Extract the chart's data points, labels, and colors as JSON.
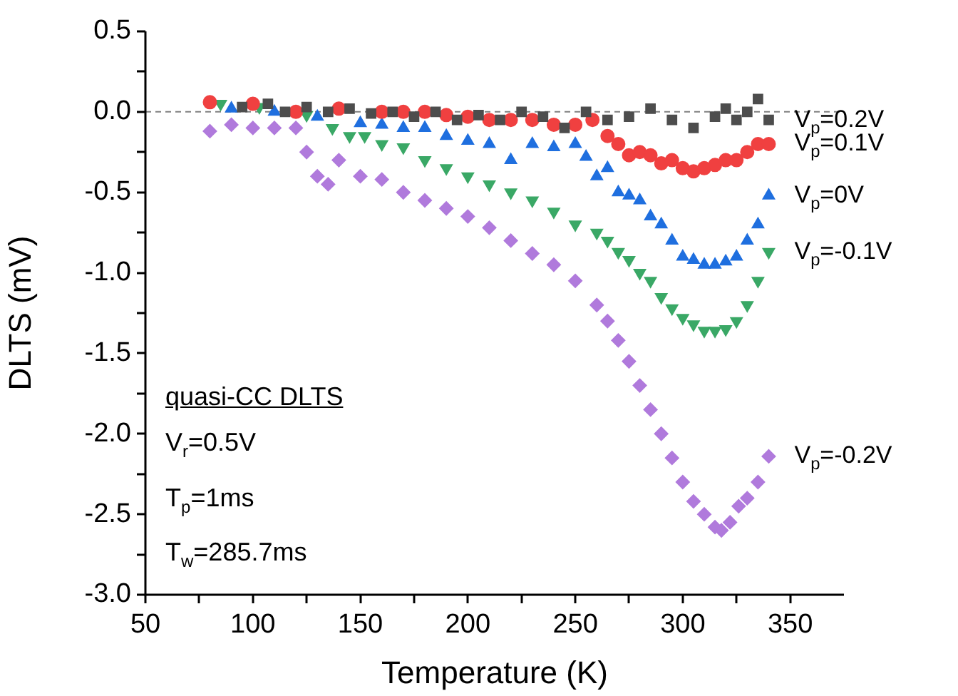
{
  "chart_data": {
    "type": "scatter",
    "xlabel": "Temperature (K)",
    "ylabel": "DLTS (mV)",
    "xlim": [
      50,
      375
    ],
    "xticks": [
      50,
      {
        "value": 75,
        "label": null
      },
      100,
      {
        "value": 125,
        "label": null
      },
      150,
      {
        "value": 175,
        "label": null
      },
      200,
      {
        "value": 225,
        "label": null
      },
      250,
      {
        "value": 275,
        "label": null
      },
      300,
      {
        "value": 325,
        "label": null
      },
      350
    ],
    "ylim": [
      -3.0,
      0.5
    ],
    "yticks": [
      {
        "value": 0.5,
        "label": "0.5"
      },
      {
        "value": 0.25,
        "label": null
      },
      {
        "value": 0,
        "label": "0.0"
      },
      {
        "value": -0.25,
        "label": null
      },
      {
        "value": -0.5,
        "label": "-0.5"
      },
      {
        "value": -0.75,
        "label": null
      },
      {
        "value": -1,
        "label": "-1.0"
      },
      {
        "value": -1.25,
        "label": null
      },
      {
        "value": -1.5,
        "label": "-1.5"
      },
      {
        "value": -1.75,
        "label": null
      },
      {
        "value": -2,
        "label": "-2.0"
      },
      {
        "value": -2.25,
        "label": null
      },
      {
        "value": -2.5,
        "label": "-2.5"
      },
      {
        "value": -2.75,
        "label": null
      },
      {
        "value": -3,
        "label": "-3.0"
      }
    ],
    "grid": false,
    "legend": false,
    "ref_lines": [
      {
        "axis": "y",
        "value": 0,
        "color": "#808080",
        "line_style": "dashed"
      }
    ],
    "annotations": [
      "quasi-CC DLTS",
      "V$_{r}$=0.5V",
      "T$_{p}$=1ms",
      "T$_{w}$=285.7ms"
    ],
    "series": [
      {
        "name": "V$_{p}$=0.2V",
        "color": "#4d4d4d",
        "marker": "square",
        "x": [
          95,
          107,
          115,
          125,
          135,
          145,
          155,
          165,
          175,
          185,
          195,
          205,
          215,
          225,
          235,
          245,
          255,
          265,
          275,
          285,
          295,
          305,
          315,
          320,
          325,
          330,
          335,
          340
        ],
        "values": [
          0.03,
          0.05,
          0.0,
          0.03,
          0.0,
          0.02,
          -0.01,
          0.0,
          -0.03,
          0.0,
          -0.05,
          -0.02,
          -0.05,
          0.0,
          -0.03,
          -0.1,
          0.0,
          -0.05,
          -0.03,
          0.02,
          -0.05,
          -0.1,
          -0.03,
          0.02,
          -0.05,
          0.0,
          0.08,
          -0.05
        ]
      },
      {
        "name": "V$_{p}$=0.1V",
        "color": "#f04040",
        "marker": "circle",
        "x": [
          80,
          100,
          120,
          140,
          160,
          170,
          180,
          190,
          200,
          210,
          220,
          230,
          240,
          250,
          258,
          265,
          270,
          275,
          280,
          285,
          290,
          295,
          300,
          305,
          310,
          315,
          320,
          325,
          330,
          335,
          340
        ],
        "values": [
          0.06,
          0.05,
          0.0,
          0.02,
          0.0,
          0.0,
          0.0,
          -0.02,
          -0.03,
          -0.05,
          -0.05,
          -0.05,
          -0.08,
          -0.08,
          -0.05,
          -0.15,
          -0.2,
          -0.27,
          -0.25,
          -0.27,
          -0.32,
          -0.3,
          -0.35,
          -0.37,
          -0.35,
          -0.33,
          -0.3,
          -0.3,
          -0.25,
          -0.2,
          -0.2
        ]
      },
      {
        "name": "V$_{p}$=0V",
        "color": "#1f6fdf",
        "marker": "triangle",
        "x": [
          90,
          110,
          130,
          150,
          160,
          170,
          180,
          190,
          200,
          210,
          220,
          230,
          240,
          250,
          255,
          260,
          265,
          270,
          275,
          280,
          285,
          290,
          295,
          300,
          305,
          310,
          315,
          320,
          325,
          330,
          335,
          340
        ],
        "values": [
          0.02,
          0.0,
          -0.03,
          -0.07,
          -0.08,
          -0.1,
          -0.1,
          -0.15,
          -0.18,
          -0.2,
          -0.3,
          -0.2,
          -0.22,
          -0.2,
          -0.28,
          -0.4,
          -0.35,
          -0.5,
          -0.52,
          -0.55,
          -0.65,
          -0.7,
          -0.8,
          -0.9,
          -0.92,
          -0.95,
          -0.95,
          -0.93,
          -0.9,
          -0.8,
          -0.7,
          -0.52
        ]
      },
      {
        "name": "V$_{p}$=-0.1V",
        "color": "#3aa866",
        "marker": "triangle-down",
        "x": [
          85,
          103,
          125,
          137,
          145,
          152,
          160,
          170,
          180,
          190,
          200,
          210,
          220,
          230,
          240,
          250,
          260,
          265,
          270,
          275,
          280,
          285,
          290,
          295,
          300,
          305,
          310,
          315,
          320,
          325,
          330,
          335,
          340
        ],
        "values": [
          0.05,
          0.03,
          -0.02,
          -0.1,
          -0.15,
          -0.15,
          -0.2,
          -0.22,
          -0.3,
          -0.35,
          -0.4,
          -0.45,
          -0.5,
          -0.55,
          -0.62,
          -0.7,
          -0.75,
          -0.8,
          -0.87,
          -0.92,
          -1.0,
          -1.05,
          -1.15,
          -1.22,
          -1.28,
          -1.32,
          -1.36,
          -1.36,
          -1.35,
          -1.3,
          -1.2,
          -1.05,
          -0.87
        ]
      },
      {
        "name": "V$_{p}$=-0.2V",
        "color": "#b07adc",
        "marker": "diamond",
        "x": [
          80,
          90,
          100,
          110,
          120,
          125,
          130,
          135,
          140,
          150,
          160,
          170,
          180,
          190,
          200,
          210,
          220,
          230,
          240,
          250,
          260,
          265,
          270,
          275,
          280,
          285,
          290,
          295,
          300,
          305,
          310,
          315,
          318,
          322,
          326,
          330,
          335,
          340
        ],
        "values": [
          -0.12,
          -0.08,
          -0.1,
          -0.1,
          -0.1,
          -0.25,
          -0.4,
          -0.45,
          -0.3,
          -0.4,
          -0.42,
          -0.5,
          -0.55,
          -0.6,
          -0.65,
          -0.72,
          -0.8,
          -0.88,
          -0.95,
          -1.05,
          -1.2,
          -1.3,
          -1.42,
          -1.55,
          -1.7,
          -1.85,
          -2.0,
          -2.15,
          -2.3,
          -2.42,
          -2.5,
          -2.58,
          -2.6,
          -2.55,
          -2.45,
          -2.4,
          -2.3,
          -2.14
        ]
      }
    ]
  }
}
